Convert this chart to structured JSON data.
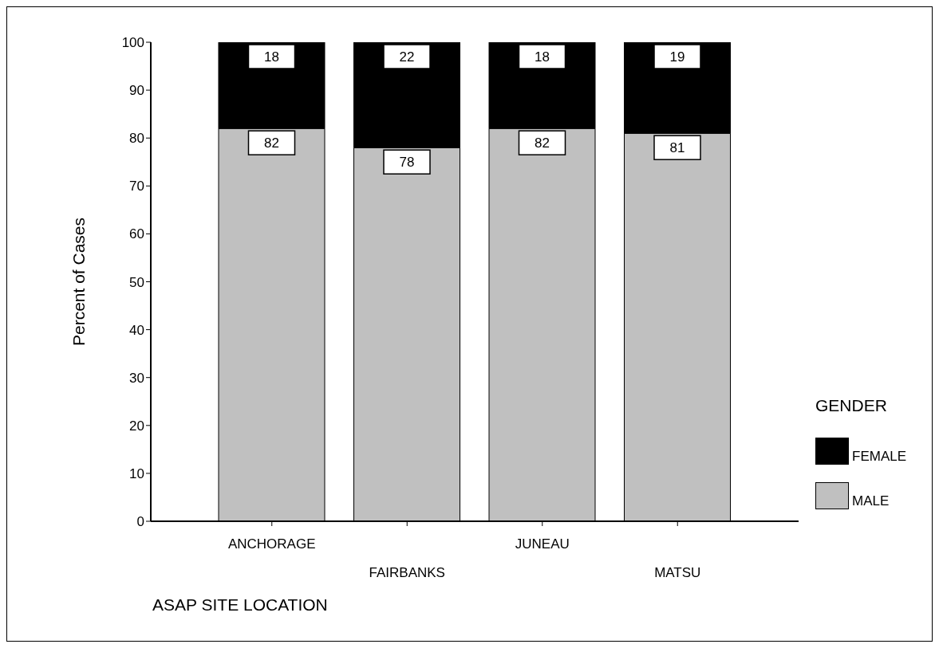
{
  "chart_data": {
    "type": "bar",
    "stacked": true,
    "xlabel": "ASAP SITE LOCATION",
    "ylabel": "Percent of Cases",
    "legend_title": "GENDER",
    "categories": [
      "ANCHORAGE",
      "FAIRBANKS",
      "JUNEAU",
      "MATSU"
    ],
    "series": [
      {
        "name": "MALE",
        "color": "#c0c0c0",
        "values": [
          82,
          78,
          82,
          81
        ]
      },
      {
        "name": "FEMALE",
        "color": "#000000",
        "values": [
          18,
          22,
          18,
          19
        ]
      }
    ],
    "ylim": [
      0,
      100
    ],
    "yticks": [
      0,
      10,
      20,
      30,
      40,
      50,
      60,
      70,
      80,
      90,
      100
    ],
    "data_labels": true,
    "grid": false,
    "legend": "right"
  }
}
